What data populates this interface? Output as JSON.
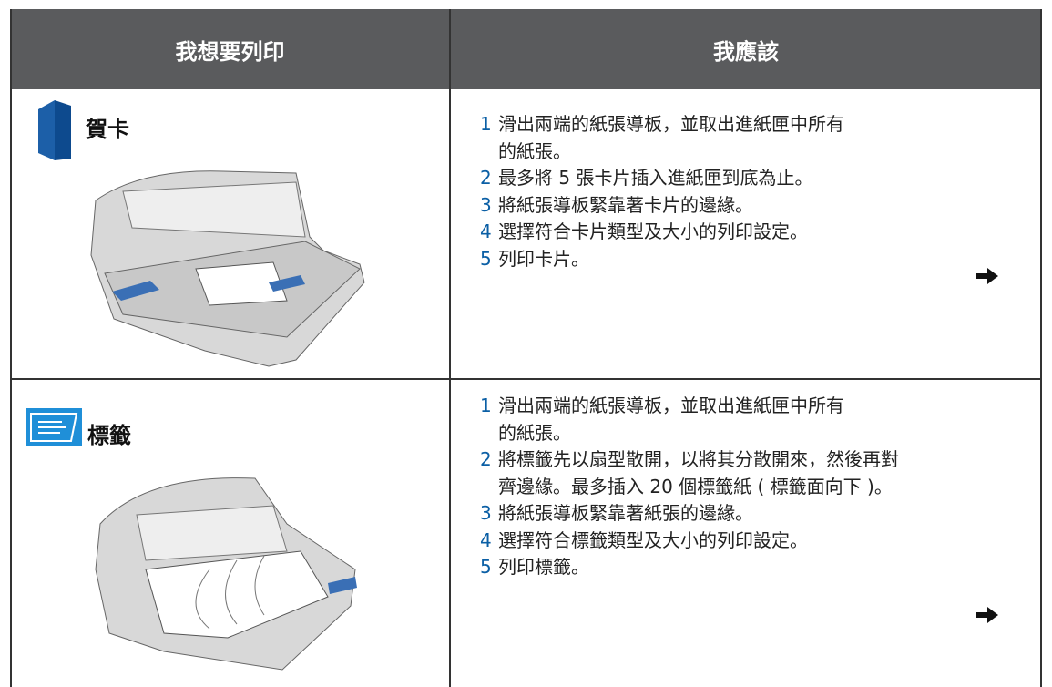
{
  "header": {
    "col1": "我想要列印",
    "col2": "我應該"
  },
  "rows": [
    {
      "title": "賀卡",
      "steps": [
        {
          "number": "1",
          "lines": [
            "滑出兩端的紙張導板，並取出進紙匣中所有",
            "的紙張。"
          ]
        },
        {
          "number": "2",
          "lines": [
            "最多將 5 張卡片插入進紙匣到底為止。"
          ]
        },
        {
          "number": "3",
          "lines": [
            "將紙張導板緊靠著卡片的邊緣。"
          ]
        },
        {
          "number": "4",
          "lines": [
            "選擇符合卡片類型及大小的列印設定。"
          ]
        },
        {
          "number": "5",
          "lines": [
            "列印卡片。"
          ]
        }
      ]
    },
    {
      "title": "標籤",
      "steps": [
        {
          "number": "1",
          "lines": [
            "滑出兩端的紙張導板，並取出進紙匣中所有",
            "的紙張。"
          ]
        },
        {
          "number": "2",
          "lines": [
            "將標籤先以扇型散開，以將其分散開來，然後再對",
            "齊邊緣。最多插入 20 個標籤紙 ( 標籤面向下 )。"
          ]
        },
        {
          "number": "3",
          "lines": [
            "將紙張導板緊靠著紙張的邊緣。"
          ]
        },
        {
          "number": "4",
          "lines": [
            "選擇符合標籤類型及大小的列印設定。"
          ]
        },
        {
          "number": "5",
          "lines": [
            "列印標籤。"
          ]
        }
      ]
    }
  ]
}
